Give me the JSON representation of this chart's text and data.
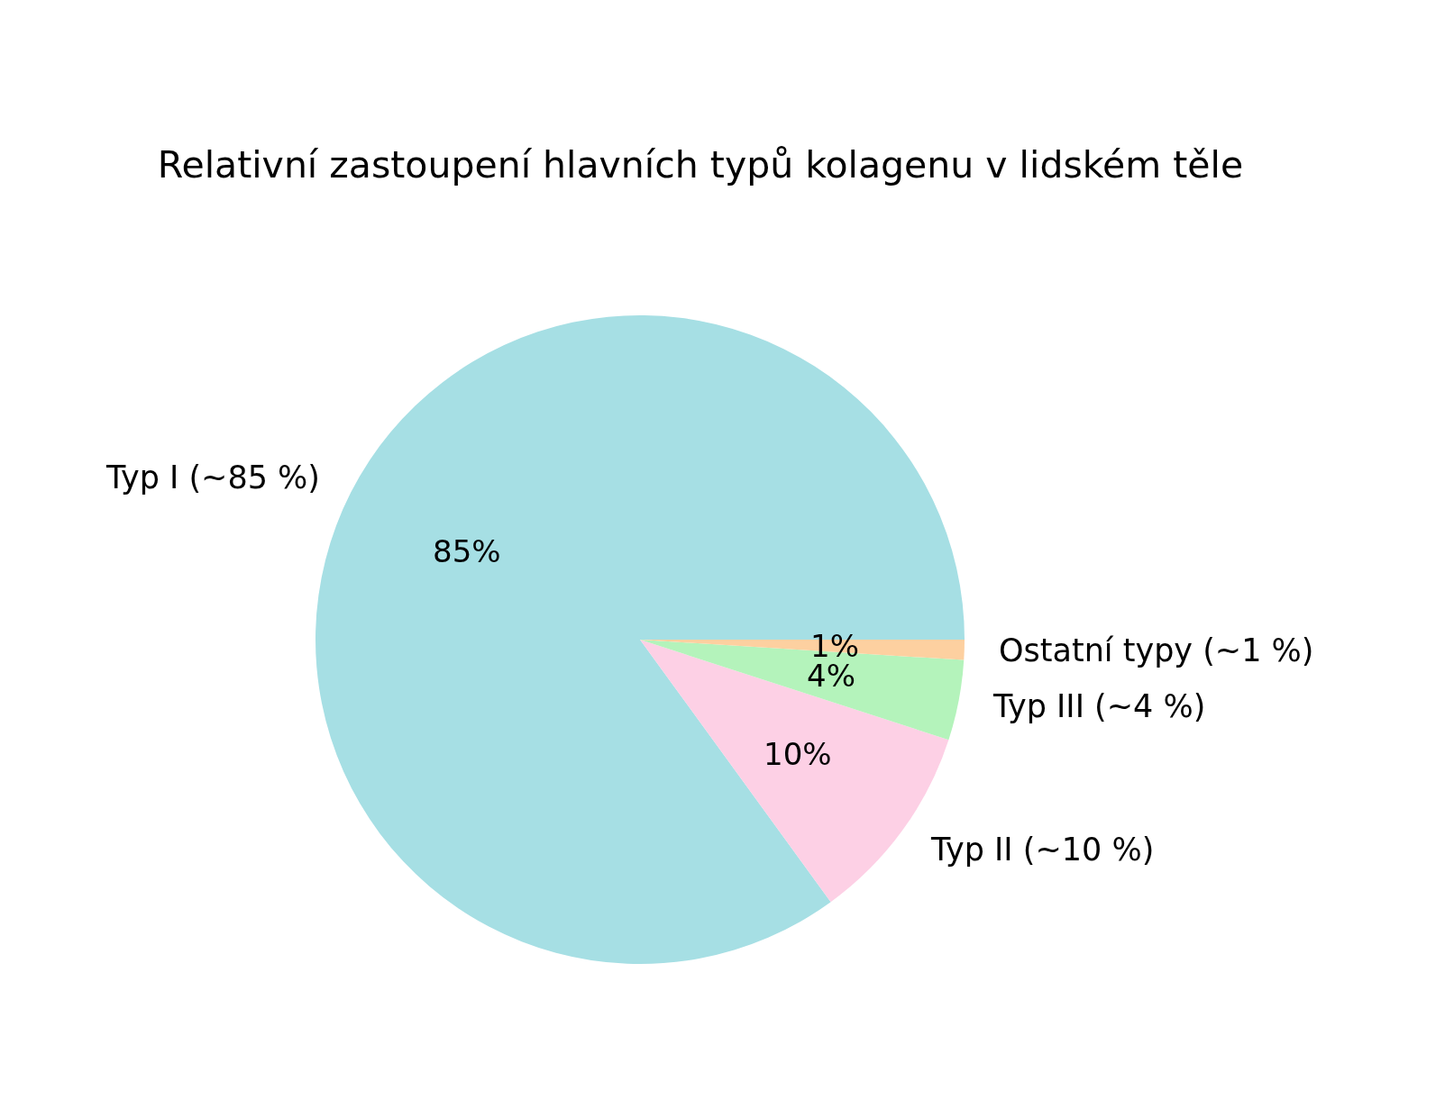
{
  "chart_data": {
    "type": "pie",
    "title": "Relativní zastoupení hlavních typů kolagenu v lidském těle",
    "categories": [
      "Typ I (~85 %)",
      "Typ II (~10 %)",
      "Typ III (~4 %)",
      "Ostatní typy (~1 %)"
    ],
    "values": [
      85,
      10,
      4,
      1
    ],
    "value_labels": [
      "85%",
      "10%",
      "4%",
      "1%"
    ],
    "colors": [
      "#a6dfe4",
      "#fdd0e5",
      "#b4f3bb",
      "#fdd0a0"
    ]
  }
}
